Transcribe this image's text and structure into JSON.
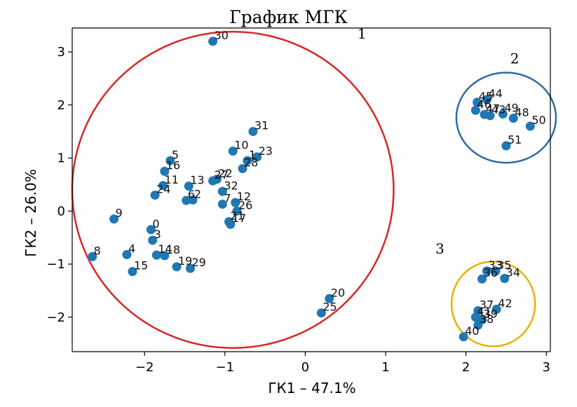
{
  "chart_data": {
    "type": "scatter",
    "title": "График МГК",
    "xlabel": "ГК1 – 47.1%",
    "ylabel": "ГК2 – 26.0%",
    "xlim": [
      -2.9,
      3.05
    ],
    "ylim": [
      -2.65,
      3.45
    ],
    "xticks": [
      -2,
      -1,
      0,
      1,
      2,
      3
    ],
    "yticks": [
      -2,
      -1,
      0,
      1,
      2,
      3
    ],
    "tick_labels": {
      "x": [
        "−2",
        "−1",
        "0",
        "1",
        "2",
        "3"
      ],
      "y": [
        "−2",
        "−1",
        "0",
        "1",
        "2",
        "3"
      ]
    },
    "point_color": "#1f77b4",
    "points": [
      {
        "label": "0",
        "x": -1.92,
        "y": -0.35
      },
      {
        "label": "1",
        "x": -0.72,
        "y": 0.95
      },
      {
        "label": "2",
        "x": -1.4,
        "y": 0.21
      },
      {
        "label": "3",
        "x": -1.9,
        "y": -0.55
      },
      {
        "label": "4",
        "x": -2.22,
        "y": -0.82
      },
      {
        "label": "5",
        "x": -1.68,
        "y": 0.95
      },
      {
        "label": "6",
        "x": -1.48,
        "y": 0.2
      },
      {
        "label": "7",
        "x": -1.03,
        "y": 0.13
      },
      {
        "label": "8",
        "x": -2.65,
        "y": -0.86
      },
      {
        "label": "9",
        "x": -2.38,
        "y": -0.15
      },
      {
        "label": "10",
        "x": -0.9,
        "y": 1.13
      },
      {
        "label": "11",
        "x": -1.77,
        "y": 0.48
      },
      {
        "label": "12",
        "x": -0.87,
        "y": 0.16
      },
      {
        "label": "13",
        "x": -1.45,
        "y": 0.47
      },
      {
        "label": "14",
        "x": -1.85,
        "y": -0.83
      },
      {
        "label": "15",
        "x": -2.15,
        "y": -1.14
      },
      {
        "label": "16",
        "x": -1.75,
        "y": 0.75
      },
      {
        "label": "17",
        "x": -0.93,
        "y": -0.25
      },
      {
        "label": "18",
        "x": -1.75,
        "y": -0.84
      },
      {
        "label": "19",
        "x": -1.6,
        "y": -1.05
      },
      {
        "label": "20",
        "x": 0.3,
        "y": -1.65
      },
      {
        "label": "21",
        "x": -0.95,
        "y": -0.2
      },
      {
        "label": "22",
        "x": -1.1,
        "y": 0.6
      },
      {
        "label": "23",
        "x": -0.6,
        "y": 1.02
      },
      {
        "label": "24",
        "x": -1.87,
        "y": 0.3
      },
      {
        "label": "25",
        "x": 0.2,
        "y": -1.92
      },
      {
        "label": "26",
        "x": -0.85,
        "y": 0.0
      },
      {
        "label": "27",
        "x": -1.15,
        "y": 0.57
      },
      {
        "label": "28",
        "x": -0.78,
        "y": 0.8
      },
      {
        "label": "29",
        "x": -1.43,
        "y": -1.08
      },
      {
        "label": "30",
        "x": -1.15,
        "y": 3.2
      },
      {
        "label": "31",
        "x": -0.65,
        "y": 1.5
      },
      {
        "label": "32",
        "x": -1.03,
        "y": 0.37
      },
      {
        "label": "33",
        "x": 2.26,
        "y": -1.13
      },
      {
        "label": "34",
        "x": 2.48,
        "y": -1.27
      },
      {
        "label": "35",
        "x": 2.37,
        "y": -1.13
      },
      {
        "label": "36",
        "x": 2.2,
        "y": -1.28
      },
      {
        "label": "37",
        "x": 2.15,
        "y": -1.88
      },
      {
        "label": "38",
        "x": 2.15,
        "y": -2.15
      },
      {
        "label": "39",
        "x": 2.2,
        "y": -2.05
      },
      {
        "label": "40",
        "x": 1.97,
        "y": -2.37
      },
      {
        "label": "41",
        "x": 2.12,
        "y": -2.0
      },
      {
        "label": "42",
        "x": 2.38,
        "y": -1.85
      },
      {
        "label": "43",
        "x": 2.3,
        "y": 1.8
      },
      {
        "label": "44",
        "x": 2.26,
        "y": 2.1
      },
      {
        "label": "45",
        "x": 2.14,
        "y": 2.05
      },
      {
        "label": "46",
        "x": 2.12,
        "y": 1.9
      },
      {
        "label": "47",
        "x": 2.23,
        "y": 1.82
      },
      {
        "label": "48",
        "x": 2.59,
        "y": 1.75
      },
      {
        "label": "49",
        "x": 2.46,
        "y": 1.83
      },
      {
        "label": "50",
        "x": 2.8,
        "y": 1.6
      },
      {
        "label": "51",
        "x": 2.5,
        "y": 1.23
      }
    ],
    "clusters": [
      {
        "label": "1",
        "color": "#d62728",
        "cx": -0.9,
        "cy": 0.4,
        "rx": 2.0,
        "ry": 2.98
      },
      {
        "label": "2",
        "color": "#2f6aa5",
        "cx": 2.5,
        "cy": 1.76,
        "rx": 0.62,
        "ry": 0.85
      },
      {
        "label": "3",
        "color": "#e8b200",
        "cx": 2.34,
        "cy": -1.75,
        "rx": 0.52,
        "ry": 0.8
      }
    ]
  }
}
